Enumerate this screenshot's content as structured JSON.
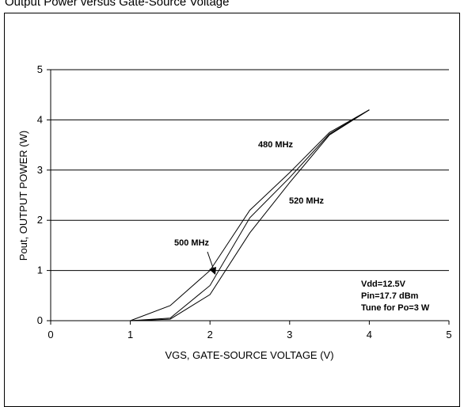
{
  "caption": "Output Power versus Gate-Source Voltage",
  "chart_data": {
    "type": "line",
    "title": "",
    "xlabel": "VGS, GATE-SOURCE VOLTAGE (V)",
    "ylabel": "Pout, OUTPUT POWER (W)",
    "xlim": [
      0,
      5
    ],
    "ylim": [
      0,
      5
    ],
    "x_ticks": [
      "0",
      "1",
      "2",
      "3",
      "4",
      "5"
    ],
    "y_ticks": [
      "0",
      "1",
      "2",
      "3",
      "4",
      "5"
    ],
    "grid": "horizontal",
    "series": [
      {
        "name": "480 MHz",
        "x": [
          1,
          1.5,
          2,
          2.5,
          3,
          3.5,
          4
        ],
        "y": [
          0,
          0.3,
          1.0,
          2.2,
          2.95,
          3.75,
          4.2
        ]
      },
      {
        "name": "500 MHz",
        "x": [
          1,
          1.5,
          2,
          2.5,
          3,
          3.5,
          4
        ],
        "y": [
          0,
          0.05,
          0.7,
          2.05,
          2.85,
          3.72,
          4.2
        ]
      },
      {
        "name": "520 MHz",
        "x": [
          1,
          1.5,
          2,
          2.5,
          3,
          3.5,
          4
        ],
        "y": [
          0,
          0.03,
          0.52,
          1.75,
          2.75,
          3.7,
          4.2
        ]
      }
    ],
    "annotations": {
      "label_480": "480 MHz",
      "label_500": "500 MHz",
      "label_520": "520 MHz",
      "conditions": [
        "Vdd=12.5V",
        "Pin=17.7 dBm",
        "Tune for Po=3 W"
      ]
    }
  }
}
